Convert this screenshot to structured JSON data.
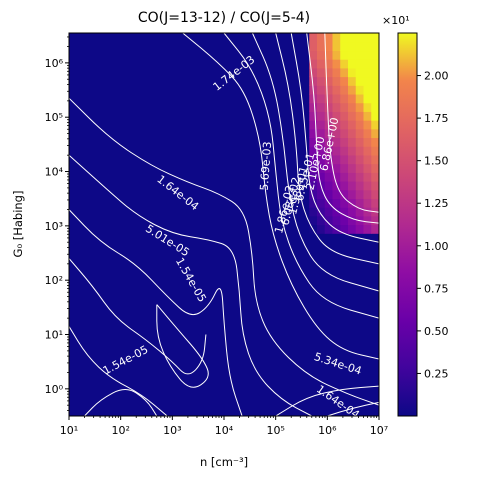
{
  "chart_data": {
    "type": "heatmap",
    "title": "CO(J=13-12) / CO(J=5-4)",
    "xlabel": "n [cm⁻³]",
    "ylabel": "G₀ [Habing]",
    "xscale": "log",
    "yscale": "log",
    "xlim_log10": [
      1,
      7
    ],
    "ylim_log10": [
      -0.5,
      6.55
    ],
    "x_ticks": [
      {
        "log": 1,
        "label": "10¹"
      },
      {
        "log": 2,
        "label": "10²"
      },
      {
        "log": 3,
        "label": "10³"
      },
      {
        "log": 4,
        "label": "10⁴"
      },
      {
        "log": 5,
        "label": "10⁵"
      },
      {
        "log": 6,
        "label": "10⁶"
      },
      {
        "log": 7,
        "label": "10⁷"
      }
    ],
    "y_ticks": [
      {
        "log": 0,
        "label": "10⁰"
      },
      {
        "log": 1,
        "label": "10¹"
      },
      {
        "log": 2,
        "label": "10²"
      },
      {
        "log": 3,
        "label": "10³"
      },
      {
        "log": 4,
        "label": "10⁴"
      },
      {
        "log": 5,
        "label": "10⁵"
      },
      {
        "log": 6,
        "label": "10⁶"
      }
    ],
    "colorbar": {
      "colormap": "plasma",
      "range": [
        0,
        2.25
      ],
      "ticks": [
        0.25,
        0.5,
        0.75,
        1.0,
        1.25,
        1.5,
        1.75,
        2.0
      ],
      "tick_labels": [
        "0.25",
        "0.50",
        "0.75",
        "1.00",
        "1.25",
        "1.50",
        "1.75",
        "2.00"
      ],
      "multiplier": "×10¹"
    },
    "bright_region": {
      "description_values": "ratio rises toward high n and high G0",
      "n_log_min": 5.7,
      "g0_log_min": 2.9,
      "max_value": 2.25
    },
    "contour_labels": [
      {
        "text": "1.74e-03",
        "x_log": 4.2,
        "y_log": 5.8,
        "angle": 38
      },
      {
        "text": "6.86e+00",
        "x_log": 6.05,
        "y_log": 4.5,
        "angle": 78
      },
      {
        "text": "2.10e+00",
        "x_log": 5.78,
        "y_log": 4.15,
        "angle": 78
      },
      {
        "text": "6.45e-01",
        "x_log": 5.58,
        "y_log": 3.9,
        "angle": 76
      },
      {
        "text": "1.98e-01",
        "x_log": 5.45,
        "y_log": 3.65,
        "angle": 76
      },
      {
        "text": "6.08e-02",
        "x_log": 5.3,
        "y_log": 3.45,
        "angle": 76
      },
      {
        "text": "1.86e-02",
        "x_log": 5.18,
        "y_log": 3.3,
        "angle": 76
      },
      {
        "text": "5.69e-03",
        "x_log": 4.82,
        "y_log": 4.1,
        "angle": 86
      },
      {
        "text": "1.64e-04",
        "x_log": 3.1,
        "y_log": 3.6,
        "angle": -38
      },
      {
        "text": "5.01e-05",
        "x_log": 2.9,
        "y_log": 2.72,
        "angle": -32
      },
      {
        "text": "1.54e-05",
        "x_log": 3.35,
        "y_log": 2.0,
        "angle": -60
      },
      {
        "text": "1.54e-05",
        "x_log": 2.1,
        "y_log": 0.52,
        "angle": 28
      },
      {
        "text": "5.34e-04",
        "x_log": 6.2,
        "y_log": 0.45,
        "angle": -18
      },
      {
        "text": "1.64e-04",
        "x_log": 6.2,
        "y_log": -0.25,
        "angle": -35
      }
    ]
  }
}
